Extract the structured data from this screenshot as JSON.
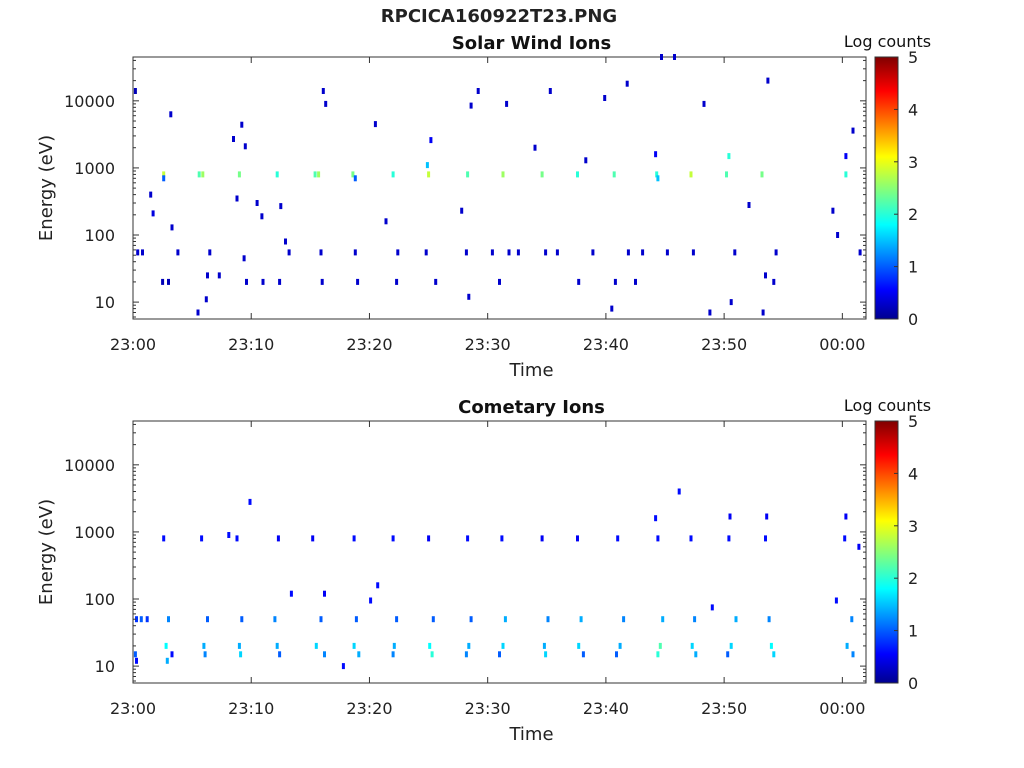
{
  "figure": {
    "file_title": "RPCICA160922T23.PNG"
  },
  "chart_data": [
    {
      "type": "heatmap",
      "title": "Solar Wind Ions",
      "xlabel": "Time",
      "ylabel": "Energy (eV)",
      "x_ticks": [
        "23:00",
        "23:10",
        "23:20",
        "23:30",
        "23:40",
        "23:50",
        "00:00"
      ],
      "x_tick_minutes": [
        0,
        10,
        20,
        30,
        40,
        50,
        60
      ],
      "xlim_minutes": [
        0,
        62
      ],
      "y_scale": "log",
      "y_ticks": [
        "10",
        "100",
        "1000",
        "10000"
      ],
      "y_tick_values": [
        10,
        100,
        1000,
        10000
      ],
      "ylim": [
        5.6,
        45000
      ],
      "colorbar": {
        "label": "Log counts",
        "ticks": [
          "0",
          "1",
          "2",
          "3",
          "4",
          "5"
        ],
        "range": [
          0,
          5
        ],
        "colormap": "jet"
      },
      "points": [
        [
          0.2,
          14000,
          0.2
        ],
        [
          0.4,
          55,
          0.3
        ],
        [
          0.8,
          55,
          0.3
        ],
        [
          1.5,
          400,
          0.3
        ],
        [
          1.7,
          210,
          0.4
        ],
        [
          2.5,
          20,
          0.2
        ],
        [
          3.0,
          20,
          0.2
        ],
        [
          3.2,
          6300,
          0.3
        ],
        [
          3.3,
          130,
          0.3
        ],
        [
          3.8,
          55,
          0.3
        ],
        [
          2.6,
          800,
          2.8
        ],
        [
          2.6,
          700,
          1.0
        ],
        [
          5.6,
          800,
          2.2
        ],
        [
          5.9,
          800,
          2.6
        ],
        [
          5.5,
          7,
          0.3
        ],
        [
          6.2,
          11,
          0.3
        ],
        [
          6.3,
          25,
          0.3
        ],
        [
          6.5,
          55,
          0.3
        ],
        [
          7.3,
          25,
          0.3
        ],
        [
          8.5,
          2700,
          0.3
        ],
        [
          8.8,
          350,
          0.3
        ],
        [
          9.0,
          800,
          2.4
        ],
        [
          9.2,
          4400,
          0.3
        ],
        [
          9.5,
          2100,
          0.3
        ],
        [
          9.6,
          20,
          0.3
        ],
        [
          9.4,
          45,
          0.3
        ],
        [
          10.5,
          300,
          0.3
        ],
        [
          10.9,
          190,
          0.3
        ],
        [
          11.0,
          20,
          0.3
        ],
        [
          12.2,
          800,
          2.0
        ],
        [
          12.5,
          270,
          0.3
        ],
        [
          12.9,
          80,
          0.3
        ],
        [
          12.4,
          20,
          0.3
        ],
        [
          13.2,
          55,
          0.3
        ],
        [
          15.4,
          800,
          2.2
        ],
        [
          15.7,
          800,
          2.6
        ],
        [
          16.1,
          14000,
          0.3
        ],
        [
          16.3,
          9000,
          0.3
        ],
        [
          15.9,
          55,
          0.3
        ],
        [
          16.0,
          20,
          0.3
        ],
        [
          18.6,
          800,
          2.4
        ],
        [
          18.8,
          700,
          1.0
        ],
        [
          18.8,
          55,
          0.3
        ],
        [
          19.0,
          20,
          0.3
        ],
        [
          20.5,
          4500,
          0.3
        ],
        [
          21.4,
          160,
          0.3
        ],
        [
          22.0,
          800,
          2.0
        ],
        [
          22.3,
          20,
          0.3
        ],
        [
          22.4,
          55,
          0.3
        ],
        [
          25.0,
          800,
          2.8
        ],
        [
          25.2,
          2600,
          0.5
        ],
        [
          24.9,
          1100,
          1.5
        ],
        [
          24.8,
          55,
          0.3
        ],
        [
          25.6,
          20,
          0.3
        ],
        [
          27.8,
          230,
          0.3
        ],
        [
          28.3,
          800,
          2.2
        ],
        [
          28.4,
          12,
          0.3
        ],
        [
          28.2,
          55,
          0.3
        ],
        [
          28.6,
          8500,
          0.3
        ],
        [
          29.2,
          14000,
          0.3
        ],
        [
          30.4,
          55,
          0.3
        ],
        [
          31.3,
          800,
          2.6
        ],
        [
          31.0,
          20,
          0.3
        ],
        [
          31.6,
          9000,
          0.3
        ],
        [
          31.8,
          55,
          0.3
        ],
        [
          32.6,
          55,
          0.3
        ],
        [
          34.0,
          2000,
          0.3
        ],
        [
          34.6,
          800,
          2.4
        ],
        [
          34.9,
          55,
          0.3
        ],
        [
          35.3,
          14000,
          0.3
        ],
        [
          35.9,
          55,
          0.3
        ],
        [
          37.6,
          800,
          2.0
        ],
        [
          37.7,
          20,
          0.3
        ],
        [
          38.3,
          1300,
          0.3
        ],
        [
          38.9,
          55,
          0.3
        ],
        [
          39.9,
          11000,
          0.3
        ],
        [
          40.7,
          800,
          2.2
        ],
        [
          40.5,
          8,
          0.3
        ],
        [
          40.8,
          20,
          0.3
        ],
        [
          41.8,
          18000,
          0.3
        ],
        [
          41.9,
          55,
          0.3
        ],
        [
          42.5,
          20,
          0.3
        ],
        [
          43.1,
          55,
          0.3
        ],
        [
          44.3,
          800,
          2.0
        ],
        [
          44.4,
          700,
          1.5
        ],
        [
          44.2,
          1600,
          0.5
        ],
        [
          44.7,
          45000,
          0.3
        ],
        [
          45.2,
          55,
          0.3
        ],
        [
          45.8,
          45000,
          0.3
        ],
        [
          47.2,
          800,
          2.8
        ],
        [
          47.4,
          55,
          0.3
        ],
        [
          48.3,
          9000,
          0.3
        ],
        [
          48.8,
          7,
          0.3
        ],
        [
          50.2,
          800,
          2.2
        ],
        [
          50.4,
          1500,
          2.0
        ],
        [
          50.6,
          10,
          0.3
        ],
        [
          50.9,
          55,
          0.3
        ],
        [
          52.1,
          280,
          0.3
        ],
        [
          53.2,
          800,
          2.4
        ],
        [
          53.7,
          20000,
          0.3
        ],
        [
          53.5,
          25,
          0.3
        ],
        [
          54.2,
          20,
          0.3
        ],
        [
          53.3,
          7,
          0.3
        ],
        [
          54.4,
          55,
          0.3
        ],
        [
          59.2,
          230,
          0.3
        ],
        [
          59.6,
          100,
          0.3
        ],
        [
          60.3,
          800,
          2.0
        ],
        [
          60.3,
          1500,
          0.5
        ],
        [
          60.9,
          3600,
          0.3
        ],
        [
          61.5,
          55,
          0.3
        ]
      ]
    },
    {
      "type": "heatmap",
      "title": "Cometary Ions",
      "xlabel": "Time",
      "ylabel": "Energy (eV)",
      "x_ticks": [
        "23:00",
        "23:10",
        "23:20",
        "23:30",
        "23:40",
        "23:50",
        "00:00"
      ],
      "x_tick_minutes": [
        0,
        10,
        20,
        30,
        40,
        50,
        60
      ],
      "xlim_minutes": [
        0,
        62
      ],
      "y_scale": "log",
      "y_ticks": [
        "10",
        "100",
        "1000",
        "10000"
      ],
      "y_tick_values": [
        10,
        100,
        1000,
        10000
      ],
      "ylim": [
        5.6,
        45000
      ],
      "colorbar": {
        "label": "Log counts",
        "ticks": [
          "0",
          "1",
          "2",
          "3",
          "4",
          "5"
        ],
        "range": [
          0,
          5
        ],
        "colormap": "jet"
      },
      "points": [
        [
          0.3,
          50,
          0.8
        ],
        [
          0.7,
          50,
          1.0
        ],
        [
          1.2,
          50,
          0.8
        ],
        [
          0.2,
          15,
          1.0
        ],
        [
          0.3,
          12,
          0.6
        ],
        [
          2.6,
          800,
          0.6
        ],
        [
          2.8,
          20,
          1.8
        ],
        [
          3.0,
          50,
          1.2
        ],
        [
          3.3,
          15,
          0.6
        ],
        [
          2.9,
          12,
          1.4
        ],
        [
          5.8,
          800,
          0.6
        ],
        [
          6.0,
          20,
          1.4
        ],
        [
          6.3,
          50,
          1.0
        ],
        [
          6.1,
          15,
          1.2
        ],
        [
          8.1,
          900,
          0.6
        ],
        [
          8.8,
          800,
          0.6
        ],
        [
          9.0,
          20,
          1.4
        ],
        [
          9.2,
          50,
          1.0
        ],
        [
          9.1,
          15,
          1.6
        ],
        [
          9.9,
          2800,
          0.6
        ],
        [
          12.3,
          800,
          0.5
        ],
        [
          12.2,
          20,
          1.4
        ],
        [
          12.0,
          50,
          1.2
        ],
        [
          12.4,
          15,
          1.0
        ],
        [
          13.4,
          120,
          0.6
        ],
        [
          15.2,
          800,
          0.5
        ],
        [
          15.5,
          20,
          1.6
        ],
        [
          15.9,
          50,
          1.0
        ],
        [
          16.2,
          15,
          1.2
        ],
        [
          16.2,
          120,
          0.5
        ],
        [
          17.8,
          10,
          0.6
        ],
        [
          18.7,
          800,
          0.6
        ],
        [
          18.7,
          20,
          1.6
        ],
        [
          18.9,
          50,
          1.0
        ],
        [
          19.1,
          15,
          1.4
        ],
        [
          20.1,
          95,
          0.6
        ],
        [
          20.7,
          160,
          0.6
        ],
        [
          22.0,
          800,
          0.6
        ],
        [
          22.1,
          20,
          1.4
        ],
        [
          22.3,
          50,
          1.0
        ],
        [
          22.0,
          15,
          1.2
        ],
        [
          25.0,
          800,
          0.5
        ],
        [
          25.1,
          20,
          1.8
        ],
        [
          25.4,
          50,
          1.0
        ],
        [
          25.3,
          15,
          2.0
        ],
        [
          28.3,
          800,
          0.6
        ],
        [
          28.4,
          20,
          1.4
        ],
        [
          28.6,
          50,
          1.0
        ],
        [
          28.2,
          15,
          1.2
        ],
        [
          31.2,
          800,
          0.6
        ],
        [
          31.3,
          20,
          1.6
        ],
        [
          31.5,
          50,
          1.4
        ],
        [
          31.0,
          15,
          1.0
        ],
        [
          34.6,
          800,
          0.5
        ],
        [
          34.8,
          20,
          1.4
        ],
        [
          35.1,
          50,
          1.2
        ],
        [
          34.9,
          15,
          1.6
        ],
        [
          37.6,
          800,
          0.5
        ],
        [
          37.7,
          20,
          1.6
        ],
        [
          37.9,
          50,
          1.4
        ],
        [
          38.1,
          15,
          1.0
        ],
        [
          41.0,
          800,
          0.6
        ],
        [
          41.2,
          20,
          1.4
        ],
        [
          41.5,
          50,
          1.2
        ],
        [
          40.9,
          15,
          1.0
        ],
        [
          44.2,
          1600,
          0.6
        ],
        [
          44.4,
          800,
          0.6
        ],
        [
          44.6,
          20,
          2.2
        ],
        [
          44.8,
          50,
          1.4
        ],
        [
          44.4,
          15,
          2.0
        ],
        [
          46.2,
          4000,
          0.6
        ],
        [
          47.2,
          800,
          0.6
        ],
        [
          47.3,
          20,
          1.6
        ],
        [
          47.5,
          50,
          1.2
        ],
        [
          47.6,
          15,
          1.4
        ],
        [
          49.0,
          75,
          0.6
        ],
        [
          50.4,
          800,
          0.6
        ],
        [
          50.5,
          1700,
          0.5
        ],
        [
          50.6,
          20,
          1.6
        ],
        [
          51.0,
          50,
          1.4
        ],
        [
          50.3,
          15,
          1.0
        ],
        [
          53.5,
          800,
          0.6
        ],
        [
          53.6,
          1700,
          0.5
        ],
        [
          54.0,
          20,
          1.8
        ],
        [
          53.8,
          50,
          1.2
        ],
        [
          54.2,
          15,
          1.6
        ],
        [
          59.5,
          95,
          0.6
        ],
        [
          60.2,
          800,
          0.6
        ],
        [
          60.3,
          1700,
          0.5
        ],
        [
          60.4,
          20,
          1.4
        ],
        [
          60.8,
          50,
          1.2
        ],
        [
          61.4,
          600,
          0.5
        ],
        [
          60.9,
          15,
          1.2
        ]
      ]
    }
  ]
}
